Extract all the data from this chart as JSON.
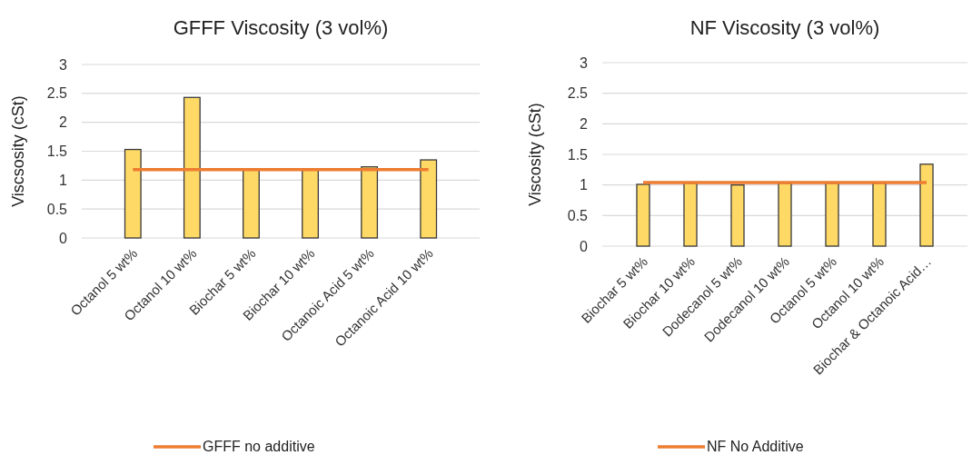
{
  "chart_data": [
    {
      "type": "bar",
      "title": "GFFF Viscosity (3 vol%)",
      "ylabel": "Viscsosity (cSt)",
      "categories": [
        "Octanol 5 wt%",
        "Octanol 10 wt%",
        "Biochar 5 wt%",
        "Biochar 10 wt%",
        "Octanoic  Acid 5 wt%",
        "Octanoic  Acid 10 wt%"
      ],
      "series": [
        {
          "color": "#ffd966",
          "values": [
            1.53,
            2.43,
            1.18,
            1.18,
            1.23,
            1.35
          ]
        },
        {
          "type": "line",
          "name": "GFFF no additive",
          "color": "#ed7d31",
          "values": [
            1.18,
            1.18,
            1.18,
            1.18,
            1.18,
            1.18
          ]
        }
      ],
      "ylim": [
        0,
        3
      ],
      "yticks": [
        0,
        0.5,
        1,
        1.5,
        2,
        2.5,
        3
      ],
      "grid": "y",
      "legend": "bottom"
    },
    {
      "type": "bar",
      "title": "NF Viscosity (3 vol%)",
      "ylabel": "Viscosity (cSt)",
      "categories": [
        "Biochar 5 wt%",
        "Biochar 10 wt%",
        "Dodecanol 5 wt%",
        "Dodecanol 10 wt%",
        "Octanol 5 wt%",
        "Octanol 10 wt%",
        "Biochar & Octanoic Acid…"
      ],
      "series": [
        {
          "color": "#ffd966",
          "values": [
            1.01,
            1.03,
            1.0,
            1.03,
            1.03,
            1.03,
            1.34
          ]
        },
        {
          "type": "line",
          "name": "NF No Additive",
          "color": "#ed7d31",
          "values": [
            1.04,
            1.04,
            1.04,
            1.04,
            1.04,
            1.04,
            1.04
          ]
        }
      ],
      "ylim": [
        0,
        3
      ],
      "yticks": [
        0,
        0.5,
        1,
        1.5,
        2,
        2.5,
        3
      ],
      "grid": "y",
      "legend": "bottom"
    }
  ]
}
